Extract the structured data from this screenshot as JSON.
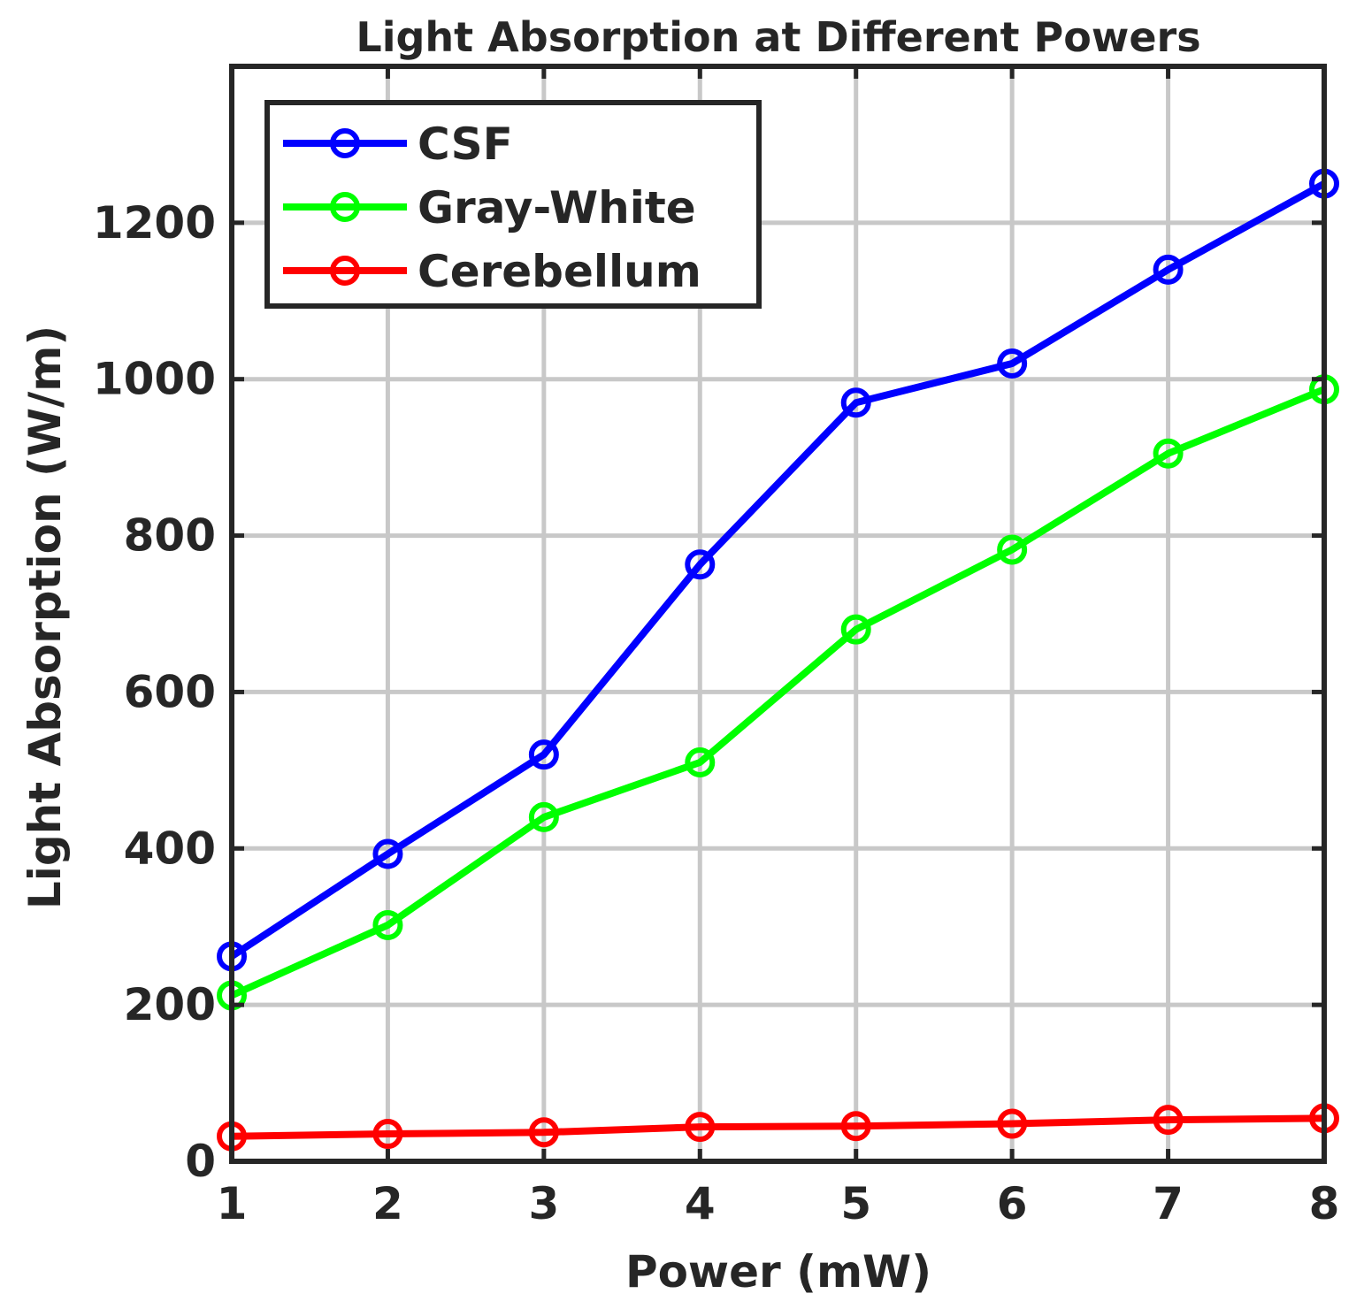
{
  "chart_data": {
    "type": "line",
    "title": "Light Absorption at Different Powers",
    "xlabel": "Power (mW)",
    "ylabel": "Light Absorption (W/m)",
    "x": [
      1,
      2,
      3,
      4,
      5,
      6,
      7,
      8
    ],
    "xlim": [
      1,
      8
    ],
    "ylim": [
      0,
      1400
    ],
    "xticks": [
      "1",
      "2",
      "3",
      "4",
      "5",
      "6",
      "7",
      "8"
    ],
    "yticks": [
      "0",
      "200",
      "400",
      "600",
      "800",
      "1000",
      "1200"
    ],
    "grid": true,
    "legend_position": "top-left",
    "series": [
      {
        "name": "CSF",
        "color": "#0000ff",
        "marker": "circle",
        "values": [
          262,
          393,
          520,
          763,
          970,
          1020,
          1140,
          1250
        ]
      },
      {
        "name": "Gray-White",
        "color": "#00ff00",
        "marker": "circle",
        "values": [
          212,
          302,
          440,
          510,
          680,
          782,
          905,
          987
        ]
      },
      {
        "name": "Cerebellum",
        "color": "#ff0000",
        "marker": "circle",
        "values": [
          32,
          35,
          37,
          44,
          45,
          48,
          53,
          55
        ]
      }
    ]
  }
}
